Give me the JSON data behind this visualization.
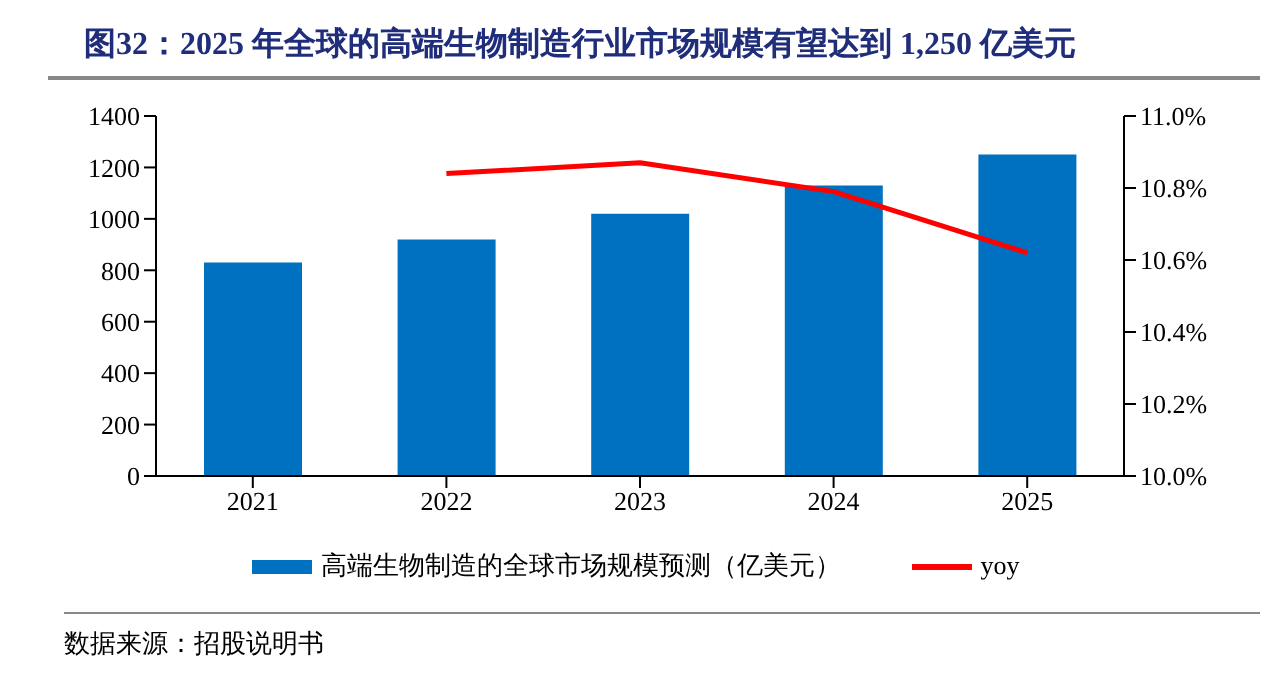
{
  "chart_data": {
    "type": "bar",
    "title": "图32：2025 年全球的高端生物制造行业市场规模有望达到 1,250 亿美元",
    "categories": [
      "2021",
      "2022",
      "2023",
      "2024",
      "2025"
    ],
    "series": [
      {
        "name": "高端生物制造的全球市场规模预测（亿美元）",
        "color": "#0070c0",
        "values": [
          830,
          920,
          1020,
          1130,
          1250
        ]
      },
      {
        "name": "yoy",
        "type": "line",
        "axis": "y2",
        "color": "#ff0000",
        "values": [
          null,
          10.84,
          10.87,
          10.79,
          10.62
        ]
      }
    ],
    "ylim": [
      0,
      1400
    ],
    "yticks": [
      0,
      200,
      400,
      600,
      800,
      1000,
      1200,
      1400
    ],
    "y2lim": [
      10.0,
      11.0
    ],
    "y2ticks": [
      {
        "value": 10.0,
        "label": "10.0%"
      },
      {
        "value": 10.2,
        "label": "10.2%"
      },
      {
        "value": 10.4,
        "label": "10.4%"
      },
      {
        "value": 10.6,
        "label": "10.6%"
      },
      {
        "value": 10.8,
        "label": "10.8%"
      },
      {
        "value": 11.0,
        "label": "11.0%"
      }
    ],
    "grid": false,
    "legend": "bottom",
    "marker": "none",
    "annotations": [
      "数据来源：招股说明书"
    ]
  }
}
